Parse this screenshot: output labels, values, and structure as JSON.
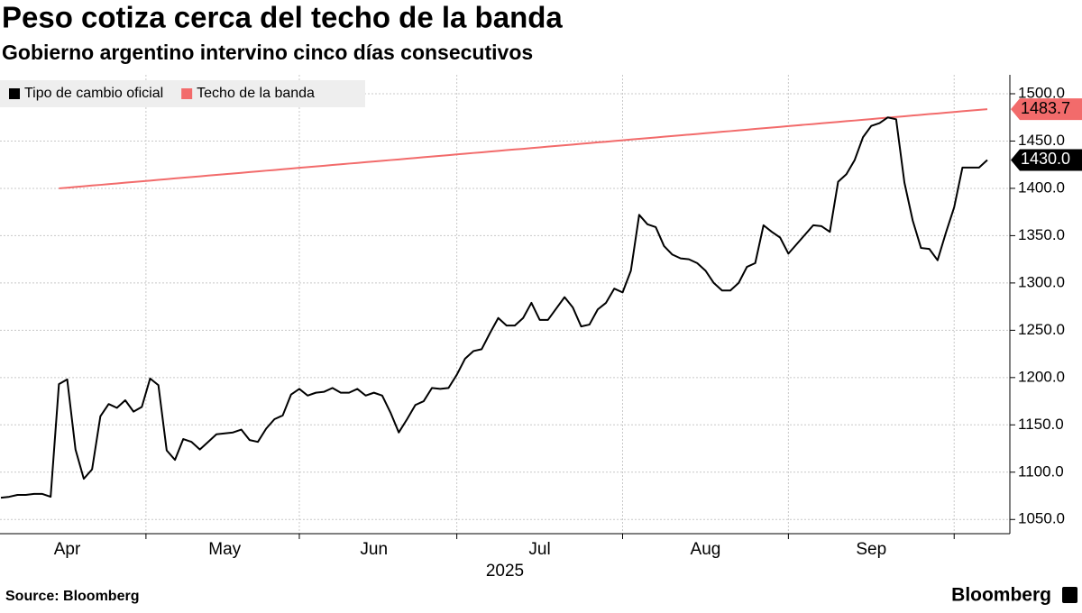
{
  "chart_data": {
    "type": "line",
    "title": "Peso cotiza cerca del techo de la banda",
    "subtitle": "Gobierno argentino intervino cinco días consecutivos",
    "source": "Source: Bloomberg",
    "brand": "Bloomberg",
    "year_label": "2025",
    "categories": [
      null,
      null,
      null,
      null,
      null,
      null,
      null,
      null,
      "Apr",
      null,
      null,
      null,
      null,
      null,
      null,
      null,
      null,
      null,
      null,
      null,
      null,
      null,
      null,
      null,
      null,
      null,
      null,
      "May",
      null,
      null,
      null,
      null,
      null,
      null,
      null,
      null,
      null,
      null,
      null,
      null,
      null,
      null,
      null,
      null,
      null,
      "Jun",
      null,
      null,
      null,
      null,
      null,
      null,
      null,
      null,
      null,
      null,
      null,
      null,
      null,
      null,
      null,
      null,
      null,
      null,
      null,
      "Jul",
      null,
      null,
      null,
      null,
      null,
      null,
      null,
      null,
      null,
      null,
      null,
      null,
      null,
      null,
      null,
      null,
      null,
      null,
      null,
      "Aug",
      null,
      null,
      null,
      null,
      null,
      null,
      null,
      null,
      null,
      null,
      null,
      null,
      null,
      null,
      null,
      null,
      null,
      null,
      null,
      "Sep",
      null,
      null,
      null,
      null,
      null,
      null,
      null,
      null,
      null,
      null,
      null,
      null,
      null,
      null
    ],
    "series": [
      {
        "name": "Tipo de cambio oficial",
        "color": "#000000",
        "last_value_label": "1430.0",
        "label_text_color": "#ffffff",
        "values": [
          1073,
          1074,
          1076,
          1076,
          1077,
          1077,
          1074,
          1193,
          1198,
          1124,
          1093,
          1103,
          1159,
          1172,
          1168,
          1176,
          1164,
          1169,
          1199,
          1192,
          1123,
          1113,
          1135,
          1132,
          1124,
          1132,
          1140,
          1141,
          1142,
          1145,
          1134,
          1132,
          1146,
          1156,
          1160,
          1182,
          1188,
          1181,
          1184,
          1185,
          1189,
          1184,
          1184,
          1188,
          1181,
          1184,
          1181,
          1163,
          1142,
          1156,
          1171,
          1175,
          1189,
          1188,
          1189,
          1203,
          1220,
          1228,
          1230,
          1247,
          1263,
          1255,
          1255,
          1263,
          1279,
          1261,
          1261,
          1273,
          1285,
          1274,
          1254,
          1256,
          1272,
          1279,
          1294,
          1290,
          1313,
          1372,
          1362,
          1359,
          1339,
          1330,
          1326,
          1325,
          1321,
          1313,
          1300,
          1292,
          1292,
          1300,
          1317,
          1321,
          1361,
          1354,
          1348,
          1331,
          1341,
          1351,
          1361,
          1360,
          1354,
          1407,
          1415,
          1430,
          1454,
          1466,
          1469,
          1475,
          1473,
          1406,
          1366,
          1337,
          1336,
          1324,
          1353,
          1380,
          1422,
          1422,
          1422,
          1430
        ]
      },
      {
        "name": "Techo de la banda",
        "color": "#f26b6b",
        "last_value_label": "1483.7",
        "label_text_color": "#000000",
        "values": [
          null,
          null,
          null,
          null,
          null,
          null,
          null,
          1400.0,
          1400.7,
          1401.5,
          1402.2,
          1403.0,
          1403.7,
          1404.5,
          1405.2,
          1406.0,
          1406.7,
          1407.5,
          1408.2,
          1409.0,
          1409.7,
          1410.5,
          1411.2,
          1412.0,
          1412.7,
          1413.5,
          1414.2,
          1414.9,
          1415.7,
          1416.4,
          1417.2,
          1417.9,
          1418.7,
          1419.4,
          1420.2,
          1420.9,
          1421.7,
          1422.4,
          1423.2,
          1423.9,
          1424.7,
          1425.4,
          1426.2,
          1426.9,
          1427.7,
          1428.4,
          1429.1,
          1429.9,
          1430.6,
          1431.4,
          1432.1,
          1432.9,
          1433.6,
          1434.4,
          1435.1,
          1435.9,
          1436.6,
          1437.4,
          1438.1,
          1438.9,
          1439.6,
          1440.4,
          1441.1,
          1441.8,
          1442.6,
          1443.3,
          1444.1,
          1444.8,
          1445.6,
          1446.3,
          1447.1,
          1447.8,
          1448.6,
          1449.3,
          1450.1,
          1450.8,
          1451.6,
          1452.3,
          1453.1,
          1453.8,
          1454.6,
          1455.3,
          1456.0,
          1456.8,
          1457.5,
          1458.3,
          1459.0,
          1459.8,
          1460.5,
          1461.3,
          1462.0,
          1462.8,
          1463.5,
          1464.3,
          1465.0,
          1465.8,
          1466.5,
          1467.3,
          1468.0,
          1468.8,
          1469.5,
          1470.2,
          1471.0,
          1471.7,
          1472.5,
          1473.2,
          1474.0,
          1474.7,
          1475.5,
          1476.2,
          1477.0,
          1477.7,
          1478.5,
          1479.2,
          1480.0,
          1480.7,
          1481.5,
          1482.2,
          1483.0,
          1483.7
        ]
      }
    ],
    "ylim": [
      1035,
      1520
    ],
    "yticks": [
      {
        "value": 1050,
        "label": "1050.0"
      },
      {
        "value": 1100,
        "label": "1100.0"
      },
      {
        "value": 1150,
        "label": "1150.0"
      },
      {
        "value": 1200,
        "label": "1200.0"
      },
      {
        "value": 1250,
        "label": "1250.0"
      },
      {
        "value": 1300,
        "label": "1300.0"
      },
      {
        "value": 1350,
        "label": "1350.0"
      },
      {
        "value": 1400,
        "label": "1400.0"
      },
      {
        "value": 1450,
        "label": "1450.0"
      },
      {
        "value": 1500,
        "label": "1500.0"
      }
    ],
    "grid": true,
    "legend": "top-left"
  }
}
